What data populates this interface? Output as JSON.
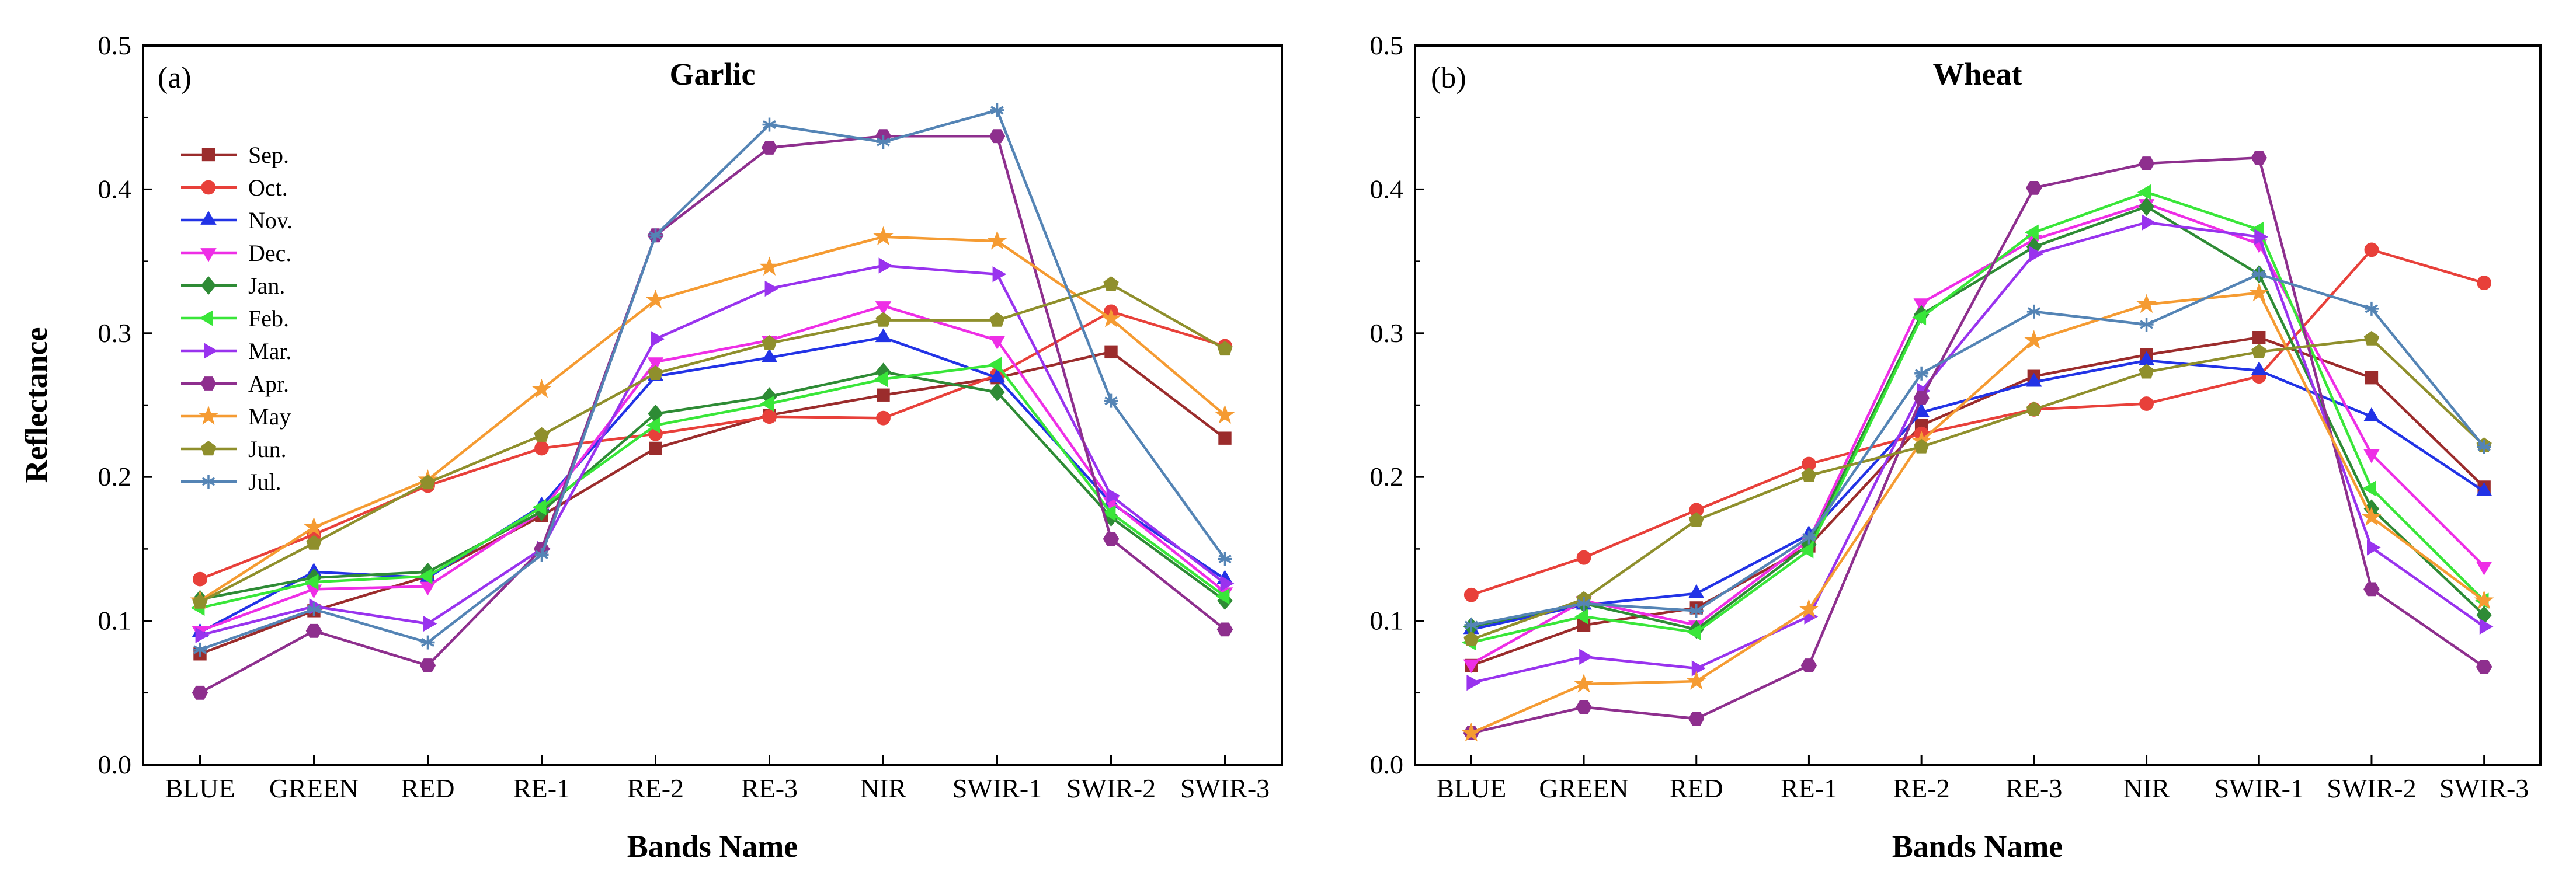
{
  "figure": {
    "ylabel": "Reflectance",
    "xlabel": "Bands Name"
  },
  "series_styles": [
    {
      "name": "Sep.",
      "color": "#9b2c2c",
      "marker": "square"
    },
    {
      "name": "Oct.",
      "color": "#e8403a",
      "marker": "circle"
    },
    {
      "name": "Nov.",
      "color": "#2233e6",
      "marker": "triangle-up"
    },
    {
      "name": "Dec.",
      "color": "#ee2ee6",
      "marker": "triangle-down"
    },
    {
      "name": "Jan.",
      "color": "#2e8b35",
      "marker": "diamond"
    },
    {
      "name": "Feb.",
      "color": "#39e639",
      "marker": "triangle-left"
    },
    {
      "name": "Mar.",
      "color": "#9933ee",
      "marker": "triangle-right"
    },
    {
      "name": "Apr.",
      "color": "#8e2f8e",
      "marker": "hexagon"
    },
    {
      "name": "May",
      "color": "#f59b32",
      "marker": "star"
    },
    {
      "name": "Jun.",
      "color": "#8f8f2c",
      "marker": "pentagon"
    },
    {
      "name": "Jul.",
      "color": "#5484b5",
      "marker": "asterisk"
    }
  ],
  "chart_data": [
    {
      "type": "line",
      "panel": "(a)",
      "title": "Garlic",
      "xlabel": "Bands Name",
      "ylabel": "Reflectance",
      "categories": [
        "BLUE",
        "GREEN",
        "RED",
        "RE-1",
        "RE-2",
        "RE-3",
        "NIR",
        "SWIR-1",
        "SWIR-2",
        "SWIR-3"
      ],
      "ylim": [
        0.0,
        0.5
      ],
      "yticks": [
        "0.0",
        "0.1",
        "0.2",
        "0.3",
        "0.4",
        "0.5"
      ],
      "legend": "upper-left",
      "series": [
        {
          "name": "Sep.",
          "values": [
            0.077,
            0.107,
            0.131,
            0.173,
            0.22,
            0.243,
            0.257,
            0.269,
            0.287,
            0.227
          ]
        },
        {
          "name": "Oct.",
          "values": [
            0.129,
            0.16,
            0.194,
            0.22,
            0.23,
            0.242,
            0.241,
            0.271,
            0.315,
            0.291
          ]
        },
        {
          "name": "Nov.",
          "values": [
            0.092,
            0.134,
            0.13,
            0.18,
            0.27,
            0.283,
            0.297,
            0.269,
            0.182,
            0.129
          ]
        },
        {
          "name": "Dec.",
          "values": [
            0.093,
            0.122,
            0.124,
            0.176,
            0.28,
            0.295,
            0.319,
            0.295,
            0.183,
            0.12
          ]
        },
        {
          "name": "Jan.",
          "values": [
            0.115,
            0.13,
            0.134,
            0.176,
            0.244,
            0.256,
            0.273,
            0.259,
            0.172,
            0.114
          ]
        },
        {
          "name": "Feb.",
          "values": [
            0.109,
            0.127,
            0.131,
            0.179,
            0.236,
            0.251,
            0.268,
            0.278,
            0.175,
            0.117
          ]
        },
        {
          "name": "Mar.",
          "values": [
            0.09,
            0.11,
            0.098,
            0.15,
            0.296,
            0.331,
            0.347,
            0.341,
            0.187,
            0.126
          ]
        },
        {
          "name": "Apr.",
          "values": [
            0.05,
            0.093,
            0.069,
            0.15,
            0.368,
            0.429,
            0.437,
            0.437,
            0.157,
            0.094
          ]
        },
        {
          "name": "May",
          "values": [
            0.114,
            0.165,
            0.198,
            0.261,
            0.323,
            0.346,
            0.367,
            0.364,
            0.31,
            0.243
          ]
        },
        {
          "name": "Jun.",
          "values": [
            0.113,
            0.154,
            0.196,
            0.229,
            0.272,
            0.293,
            0.309,
            0.309,
            0.334,
            0.289
          ]
        },
        {
          "name": "Jul.",
          "values": [
            0.08,
            0.108,
            0.085,
            0.146,
            0.368,
            0.445,
            0.433,
            0.455,
            0.253,
            0.143
          ]
        }
      ]
    },
    {
      "type": "line",
      "panel": "(b)",
      "title": "Wheat",
      "xlabel": "Bands Name",
      "ylabel": "Reflectance",
      "categories": [
        "BLUE",
        "GREEN",
        "RED",
        "RE-1",
        "RE-2",
        "RE-3",
        "NIR",
        "SWIR-1",
        "SWIR-2",
        "SWIR-3"
      ],
      "ylim": [
        0.0,
        0.5
      ],
      "yticks": [
        "0.0",
        "0.1",
        "0.2",
        "0.3",
        "0.4",
        "0.5"
      ],
      "legend": "none",
      "series": [
        {
          "name": "Sep.",
          "values": [
            0.069,
            0.097,
            0.109,
            0.152,
            0.236,
            0.27,
            0.285,
            0.297,
            0.269,
            0.193
          ]
        },
        {
          "name": "Oct.",
          "values": [
            0.118,
            0.144,
            0.177,
            0.209,
            0.23,
            0.247,
            0.251,
            0.27,
            0.358,
            0.335
          ]
        },
        {
          "name": "Nov.",
          "values": [
            0.094,
            0.111,
            0.119,
            0.16,
            0.245,
            0.266,
            0.281,
            0.274,
            0.242,
            0.19
          ]
        },
        {
          "name": "Dec.",
          "values": [
            0.07,
            0.114,
            0.097,
            0.156,
            0.321,
            0.365,
            0.39,
            0.362,
            0.216,
            0.138
          ]
        },
        {
          "name": "Jan.",
          "values": [
            0.096,
            0.112,
            0.094,
            0.153,
            0.313,
            0.36,
            0.388,
            0.341,
            0.178,
            0.104
          ]
        },
        {
          "name": "Feb.",
          "values": [
            0.085,
            0.103,
            0.092,
            0.149,
            0.311,
            0.37,
            0.398,
            0.372,
            0.192,
            0.114
          ]
        },
        {
          "name": "Mar.",
          "values": [
            0.057,
            0.075,
            0.067,
            0.103,
            0.26,
            0.355,
            0.377,
            0.367,
            0.151,
            0.096
          ]
        },
        {
          "name": "Apr.",
          "values": [
            0.022,
            0.04,
            0.032,
            0.069,
            0.255,
            0.401,
            0.418,
            0.422,
            0.122,
            0.068
          ]
        },
        {
          "name": "May",
          "values": [
            0.022,
            0.056,
            0.058,
            0.108,
            0.225,
            0.295,
            0.32,
            0.328,
            0.172,
            0.114
          ]
        },
        {
          "name": "Jun.",
          "values": [
            0.087,
            0.115,
            0.17,
            0.201,
            0.221,
            0.247,
            0.273,
            0.287,
            0.296,
            0.222
          ]
        },
        {
          "name": "Jul.",
          "values": [
            0.097,
            0.112,
            0.107,
            0.158,
            0.272,
            0.315,
            0.306,
            0.341,
            0.317,
            0.221
          ]
        }
      ]
    }
  ]
}
